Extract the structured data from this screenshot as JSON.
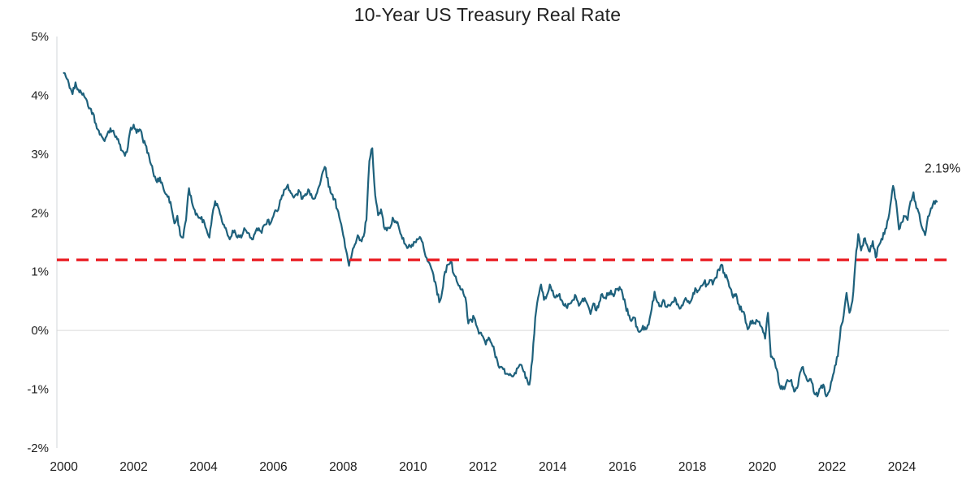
{
  "chart_data": {
    "type": "line",
    "title": "10-Year US Treasury Real Rate",
    "xlabel": "",
    "ylabel": "",
    "ylim": [
      -2,
      5
    ],
    "xlim": [
      1999.8,
      2025.35
    ],
    "grid": "zero-line-only",
    "legend": "none",
    "y_ticks": [
      {
        "label": "5%",
        "value": 5
      },
      {
        "label": "4%",
        "value": 4
      },
      {
        "label": "3%",
        "value": 3
      },
      {
        "label": "2%",
        "value": 2
      },
      {
        "label": "1%",
        "value": 1
      },
      {
        "label": "0%",
        "value": 0
      },
      {
        "label": "-1%",
        "value": -1
      },
      {
        "label": "-2%",
        "value": -2
      }
    ],
    "x_ticks": [
      {
        "label": "2000",
        "value": 2000
      },
      {
        "label": "2002",
        "value": 2002
      },
      {
        "label": "2004",
        "value": 2004
      },
      {
        "label": "2006",
        "value": 2006
      },
      {
        "label": "2008",
        "value": 2008
      },
      {
        "label": "2010",
        "value": 2010
      },
      {
        "label": "2012",
        "value": 2012
      },
      {
        "label": "2014",
        "value": 2014
      },
      {
        "label": "2016",
        "value": 2016
      },
      {
        "label": "2018",
        "value": 2018
      },
      {
        "label": "2020",
        "value": 2020
      },
      {
        "label": "2022",
        "value": 2022
      },
      {
        "label": "2024",
        "value": 2024
      }
    ],
    "series_meta": {
      "name": "10-Year US Treasury Real Rate",
      "start_year": 2000,
      "interval_months": 1,
      "color": "#1e617c"
    },
    "series_values": [
      4.38,
      4.28,
      4.12,
      4.02,
      4.22,
      4.1,
      4.04,
      3.98,
      3.9,
      3.78,
      3.7,
      3.52,
      3.4,
      3.3,
      3.22,
      3.35,
      3.44,
      3.4,
      3.3,
      3.18,
      3.06,
      2.97,
      3.12,
      3.45,
      3.5,
      3.36,
      3.42,
      3.28,
      3.16,
      3.02,
      2.82,
      2.62,
      2.52,
      2.6,
      2.46,
      2.32,
      2.28,
      2.08,
      1.82,
      1.95,
      1.62,
      1.58,
      1.88,
      2.42,
      2.18,
      2.05,
      1.95,
      1.9,
      1.88,
      1.72,
      1.58,
      1.95,
      2.2,
      2.1,
      1.94,
      1.8,
      1.68,
      1.55,
      1.7,
      1.65,
      1.62,
      1.58,
      1.74,
      1.66,
      1.58,
      1.55,
      1.7,
      1.74,
      1.66,
      1.8,
      1.88,
      1.82,
      1.94,
      2.04,
      2.12,
      2.3,
      2.4,
      2.48,
      2.34,
      2.26,
      2.32,
      2.36,
      2.24,
      2.32,
      2.4,
      2.32,
      2.24,
      2.34,
      2.48,
      2.7,
      2.76,
      2.44,
      2.32,
      2.24,
      2.06,
      1.86,
      1.62,
      1.36,
      1.1,
      1.3,
      1.46,
      1.62,
      1.54,
      1.6,
      1.88,
      2.88,
      3.1,
      2.3,
      1.96,
      2.06,
      1.76,
      1.7,
      1.74,
      1.92,
      1.86,
      1.78,
      1.62,
      1.48,
      1.4,
      1.44,
      1.44,
      1.5,
      1.56,
      1.52,
      1.32,
      1.18,
      1.1,
      0.95,
      0.74,
      0.48,
      0.66,
      1.0,
      1.12,
      1.18,
      0.96,
      0.84,
      0.76,
      0.7,
      0.56,
      0.12,
      0.18,
      0.22,
      0.06,
      -0.04,
      -0.1,
      -0.24,
      -0.12,
      -0.22,
      -0.36,
      -0.52,
      -0.62,
      -0.66,
      -0.74,
      -0.76,
      -0.78,
      -0.72,
      -0.64,
      -0.58,
      -0.7,
      -0.8,
      -0.92,
      -0.5,
      0.22,
      0.56,
      0.78,
      0.52,
      0.6,
      0.78,
      0.68,
      0.56,
      0.6,
      0.52,
      0.42,
      0.38,
      0.46,
      0.52,
      0.58,
      0.42,
      0.5,
      0.55,
      0.44,
      0.28,
      0.46,
      0.34,
      0.48,
      0.62,
      0.56,
      0.6,
      0.68,
      0.58,
      0.7,
      0.74,
      0.62,
      0.44,
      0.26,
      0.16,
      0.22,
      0.06,
      -0.02,
      0.08,
      0.02,
      0.1,
      0.36,
      0.66,
      0.48,
      0.42,
      0.52,
      0.4,
      0.43,
      0.48,
      0.56,
      0.45,
      0.38,
      0.48,
      0.52,
      0.46,
      0.56,
      0.72,
      0.68,
      0.76,
      0.82,
      0.78,
      0.86,
      0.78,
      0.9,
      1.04,
      1.12,
      0.98,
      0.88,
      0.72,
      0.56,
      0.62,
      0.44,
      0.32,
      0.26,
      0.02,
      0.16,
      0.12,
      0.18,
      0.15,
      0.04,
      -0.14,
      0.3,
      -0.45,
      -0.48,
      -0.66,
      -0.94,
      -1.0,
      -0.94,
      -0.86,
      -0.84,
      -1.04,
      -0.98,
      -0.72,
      -0.62,
      -0.78,
      -0.86,
      -0.88,
      -1.08,
      -1.12,
      -0.98,
      -0.92,
      -1.12,
      -1.04,
      -0.84,
      -0.6,
      -0.44,
      0.06,
      0.26,
      0.64,
      0.3,
      0.5,
      1.14,
      1.64,
      1.36,
      1.56,
      1.46,
      1.34,
      1.52,
      1.24,
      1.44,
      1.56,
      1.64,
      1.86,
      2.12,
      2.46,
      2.2,
      1.72,
      1.84,
      1.94,
      1.88,
      2.2,
      2.35,
      2.08,
      1.98,
      1.74,
      1.62,
      1.94,
      2.08,
      2.2,
      2.19
    ],
    "reference_line": {
      "value": 1.2,
      "color": "#ea2127",
      "style": "dashed"
    },
    "annotation": {
      "text": "2.19%"
    },
    "colors": {
      "line": "#1e617c",
      "reference": "#ea2127",
      "zero_gridline": "#d9d9d9",
      "axis_line": "#d0d4d8",
      "tick_text": "#1d1d1d",
      "title_text": "#212121",
      "background": "#ffffff"
    }
  }
}
